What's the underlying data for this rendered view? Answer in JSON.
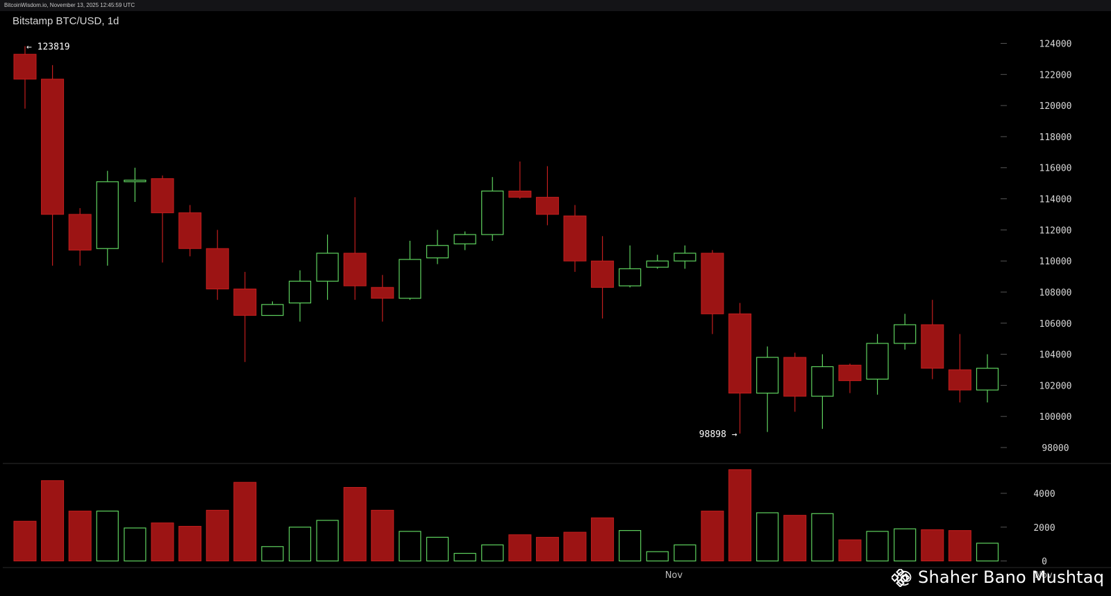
{
  "header": {
    "source": "BitcoinWisdom.io, November 13, 2025 12:45:59 UTC"
  },
  "title": "Bitstamp BTC/USD, 1d",
  "watermark": "@ Shaher Bano Mushtaq",
  "colors": {
    "up": "#5fd35f",
    "down": "#9c1414",
    "down_border": "#c41e1e",
    "background": "#000000",
    "axis_text": "#d8d8d8",
    "tick": "#555555"
  },
  "chart_data": [
    {
      "type": "candlestick",
      "title": "Bitstamp BTC/USD, 1d",
      "ylim": [
        96000,
        125000
      ],
      "y_ticks": [
        98000,
        100000,
        102000,
        104000,
        106000,
        108000,
        110000,
        112000,
        114000,
        116000,
        118000,
        120000,
        122000,
        124000
      ],
      "annotations": [
        {
          "text": "← 123819",
          "value": 123819,
          "candle": 0,
          "side": "right"
        },
        {
          "text": "98898 →",
          "value": 98898,
          "candle": 26,
          "side": "left"
        }
      ],
      "x_labels": [
        {
          "text": "Nov",
          "candle": 24
        },
        {
          "text": "Nov",
          "candle": 37
        }
      ],
      "candles": [
        {
          "open": 123300,
          "high": 123819,
          "low": 119800,
          "close": 121700
        },
        {
          "open": 121700,
          "high": 122600,
          "low": 109700,
          "close": 113000
        },
        {
          "open": 113000,
          "high": 113400,
          "low": 109700,
          "close": 110700
        },
        {
          "open": 110800,
          "high": 115800,
          "low": 109700,
          "close": 115100
        },
        {
          "open": 115100,
          "high": 116000,
          "low": 113800,
          "close": 115200
        },
        {
          "open": 115300,
          "high": 115500,
          "low": 109900,
          "close": 113100
        },
        {
          "open": 113100,
          "high": 113600,
          "low": 110300,
          "close": 110800
        },
        {
          "open": 110800,
          "high": 112000,
          "low": 107500,
          "close": 108200
        },
        {
          "open": 108200,
          "high": 109300,
          "low": 103500,
          "close": 106500
        },
        {
          "open": 106500,
          "high": 107400,
          "low": 106500,
          "close": 107200
        },
        {
          "open": 107300,
          "high": 109400,
          "low": 106100,
          "close": 108700
        },
        {
          "open": 108700,
          "high": 111700,
          "low": 107500,
          "close": 110500
        },
        {
          "open": 110500,
          "high": 114100,
          "low": 107500,
          "close": 108400
        },
        {
          "open": 108300,
          "high": 109100,
          "low": 106100,
          "close": 107600
        },
        {
          "open": 107600,
          "high": 111300,
          "low": 107500,
          "close": 110100
        },
        {
          "open": 110200,
          "high": 112000,
          "low": 109800,
          "close": 111000
        },
        {
          "open": 111100,
          "high": 111900,
          "low": 110700,
          "close": 111700
        },
        {
          "open": 111700,
          "high": 115400,
          "low": 111300,
          "close": 114500
        },
        {
          "open": 114500,
          "high": 116400,
          "low": 114000,
          "close": 114100
        },
        {
          "open": 114100,
          "high": 116100,
          "low": 112300,
          "close": 113000
        },
        {
          "open": 112900,
          "high": 113600,
          "low": 109300,
          "close": 110000
        },
        {
          "open": 110000,
          "high": 111600,
          "low": 106300,
          "close": 108300
        },
        {
          "open": 108400,
          "high": 111000,
          "low": 108300,
          "close": 109500
        },
        {
          "open": 109600,
          "high": 110400,
          "low": 109500,
          "close": 110000
        },
        {
          "open": 110000,
          "high": 111000,
          "low": 109500,
          "close": 110500
        },
        {
          "open": 110500,
          "high": 110700,
          "low": 105300,
          "close": 106600
        },
        {
          "open": 106600,
          "high": 107300,
          "low": 98898,
          "close": 101500
        },
        {
          "open": 101500,
          "high": 104500,
          "low": 99000,
          "close": 103800
        },
        {
          "open": 103800,
          "high": 104100,
          "low": 100300,
          "close": 101300
        },
        {
          "open": 101300,
          "high": 104000,
          "low": 99200,
          "close": 103200
        },
        {
          "open": 103300,
          "high": 103400,
          "low": 101500,
          "close": 102300
        },
        {
          "open": 102400,
          "high": 105300,
          "low": 101400,
          "close": 104700
        },
        {
          "open": 104700,
          "high": 106600,
          "low": 104300,
          "close": 105900
        },
        {
          "open": 105900,
          "high": 107500,
          "low": 102400,
          "close": 103100
        },
        {
          "open": 103000,
          "high": 105300,
          "low": 100900,
          "close": 101700
        },
        {
          "open": 101700,
          "high": 104000,
          "low": 100900,
          "close": 103100
        }
      ]
    },
    {
      "type": "bar",
      "title": "Volume",
      "ylim": [
        0,
        5600
      ],
      "y_ticks": [
        0,
        2000,
        4000
      ],
      "values": [
        2350,
        4750,
        2950,
        2950,
        1950,
        2250,
        2050,
        3000,
        4650,
        850,
        2000,
        2400,
        4350,
        3000,
        1750,
        1400,
        450,
        950,
        1550,
        1400,
        1700,
        2550,
        1800,
        550,
        950,
        2950,
        5400,
        2850,
        2700,
        2800,
        1250,
        1750,
        1900,
        1850,
        1800,
        1050
      ]
    }
  ]
}
